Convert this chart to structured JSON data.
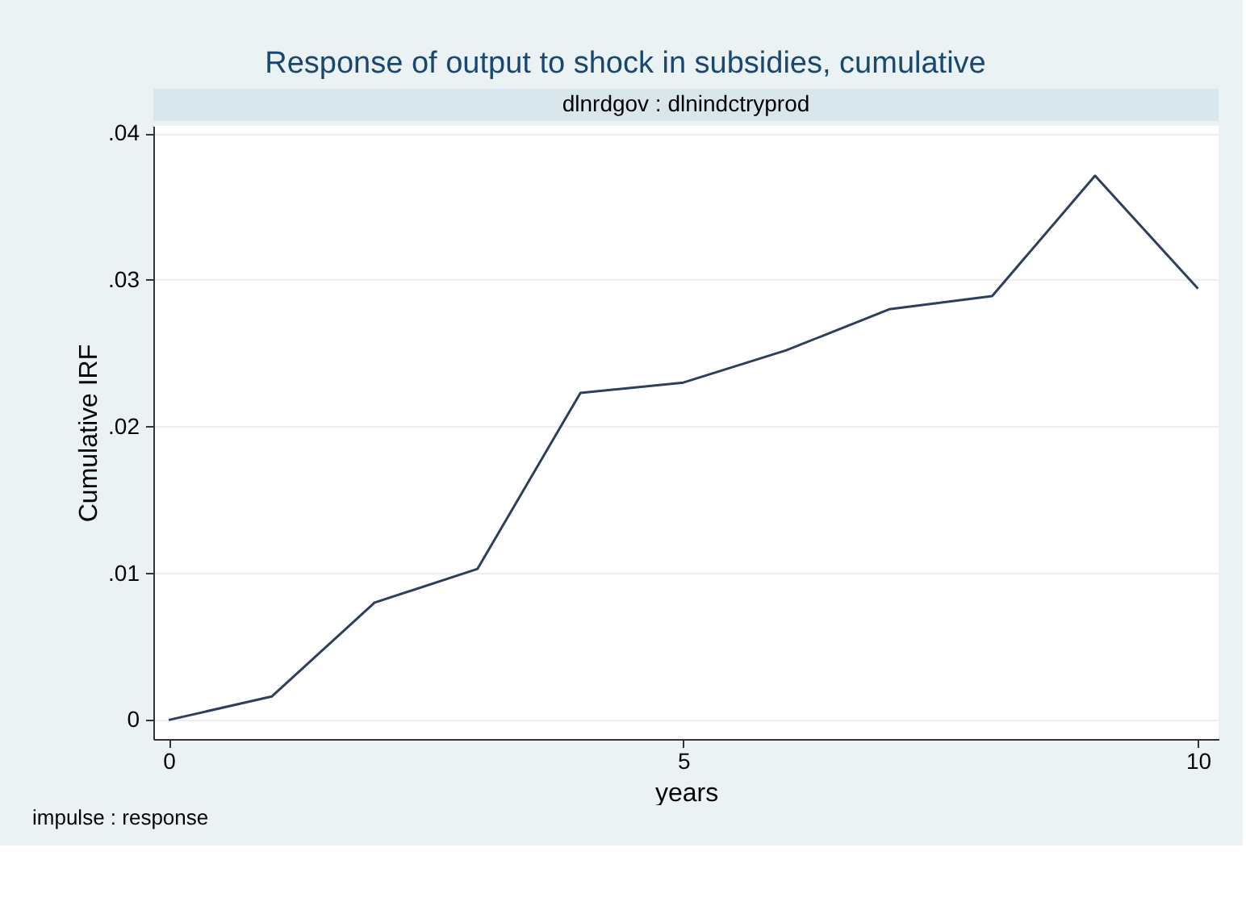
{
  "chart_data": {
    "type": "line",
    "title": "Response of output to shock in subsidies, cumulative",
    "subtitle": "dlnrdgov : dlnindctryprod",
    "xlabel": "years",
    "ylabel": "Cumulative IRF",
    "x": [
      0,
      1,
      2,
      3,
      4,
      5,
      6,
      7,
      8,
      9,
      10
    ],
    "series": [
      {
        "color": "#2e3f5c",
        "values": [
          0,
          0.0016,
          0.008,
          0.0103,
          0.0223,
          0.023,
          0.0252,
          0.028,
          0.0289,
          0.0371,
          0.0294
        ]
      }
    ],
    "xlim": [
      -0.15,
      10.2
    ],
    "xticks": [
      0,
      5,
      10
    ],
    "ylim": [
      -0.0013,
      0.0405
    ],
    "yticks": [
      {
        "value": 0,
        "label": "0"
      },
      {
        "value": 0.01,
        "label": ".01"
      },
      {
        "value": 0.02,
        "label": ".02"
      },
      {
        "value": 0.03,
        "label": ".03"
      },
      {
        "value": 0.04,
        "label": ".04"
      }
    ],
    "grid": "y",
    "marker": "none",
    "line_style": "solid",
    "annotations": [
      "impulse : response"
    ]
  }
}
